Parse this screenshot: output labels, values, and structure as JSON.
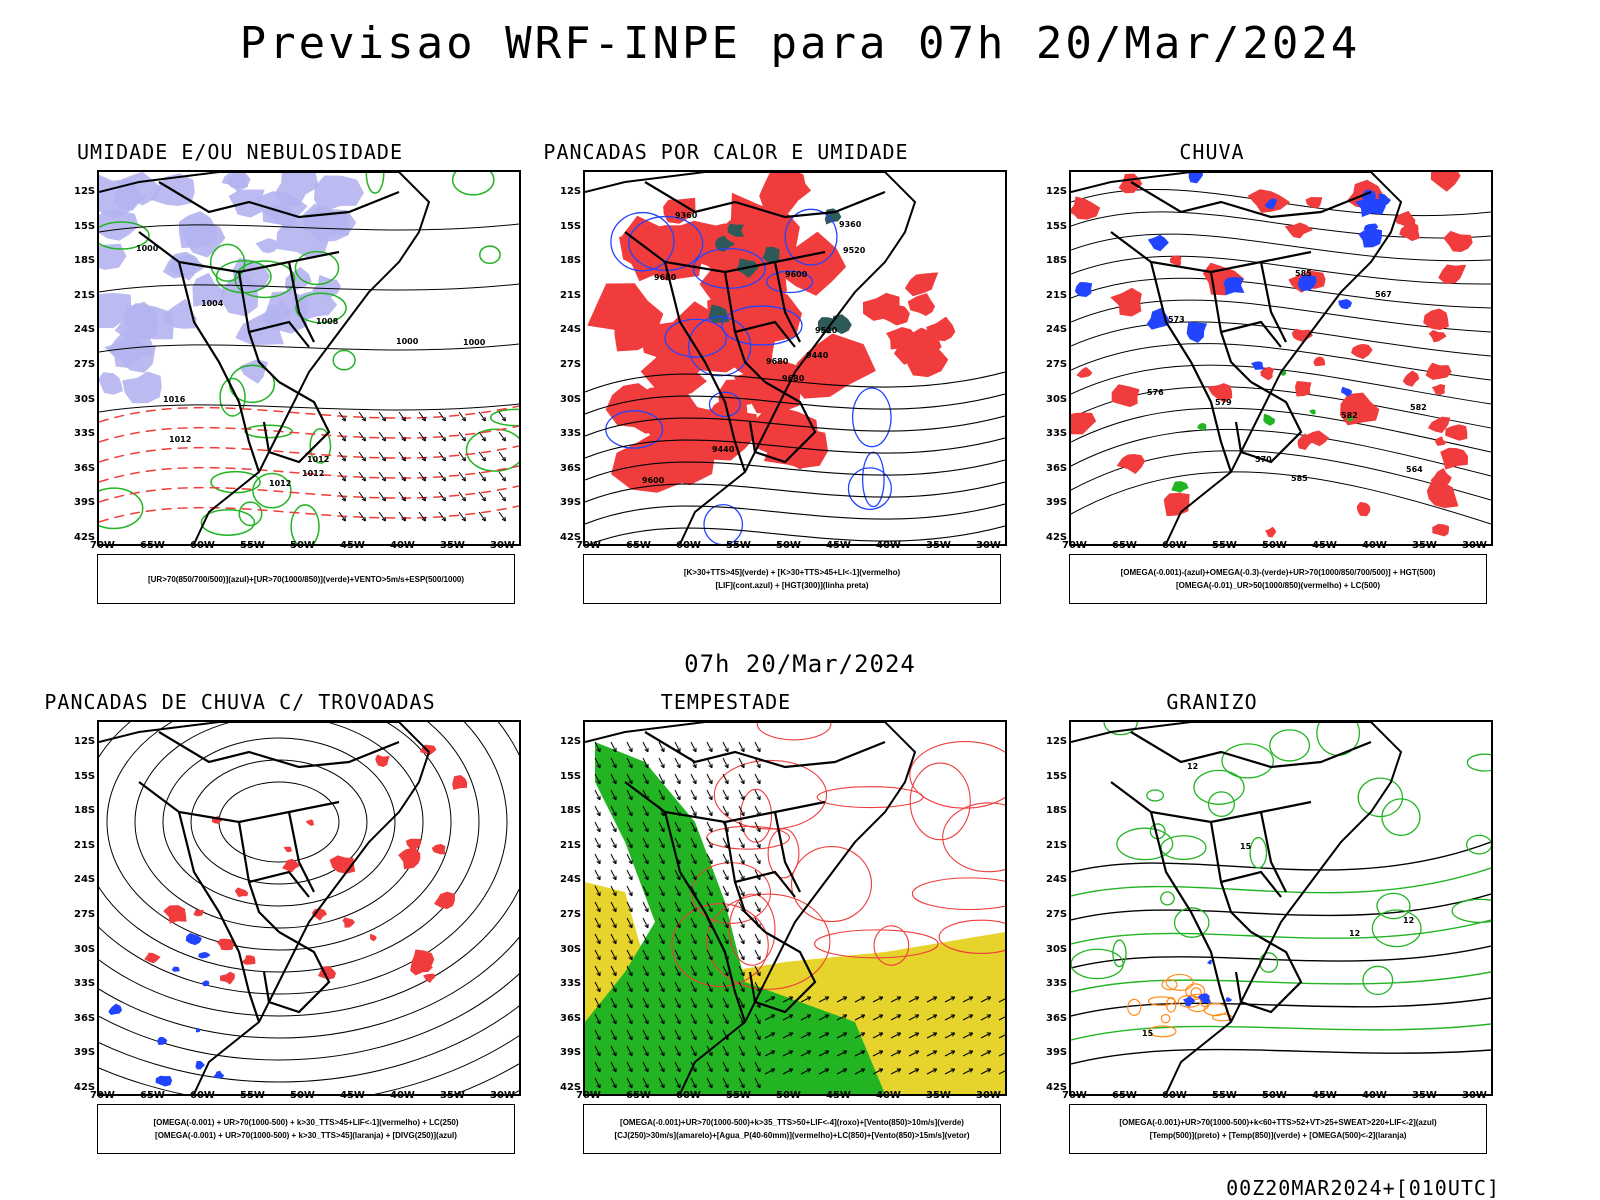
{
  "header": {
    "title": "Previsao WRF-INPE  para 07h 20/Mar/2024"
  },
  "middle_title": "07h 20/Mar/2024",
  "footer": {
    "stamp": "00Z20MAR2024+[010UTC]"
  },
  "axes": {
    "lat_labels": [
      "12S",
      "15S",
      "18S",
      "21S",
      "24S",
      "27S",
      "30S",
      "33S",
      "36S",
      "39S",
      "42S"
    ],
    "lon_labels": [
      "70W",
      "65W",
      "60W",
      "55W",
      "50W",
      "45W",
      "40W",
      "35W",
      "30W"
    ]
  },
  "colors": {
    "red": "#f03c3c",
    "green": "#22b422",
    "blue": "#2244ff",
    "lavender": "#b4b4f0",
    "yellow": "#e6d42c",
    "orange": "#ff8c1a",
    "darkteal": "#2f5a5a"
  },
  "panels": [
    {
      "title": "UMIDADE E/OU NEBULOSIDADE",
      "legend": [
        "[UR>70(850/700/500)](azul)+[UR>70(1000/850)](verde)+VENTO>5m/s+ESP(500/1000)"
      ],
      "contour_labels": [
        "1012",
        "1012",
        "1008",
        "1000",
        "1000",
        "1012",
        "1012",
        "1016",
        "1000",
        "1004"
      ]
    },
    {
      "title": "PANCADAS POR CALOR E UMIDADE",
      "legend": [
        "[K>30+TTS>45](verde) + [K>30+TTS>45+LI<-1](vermelho)",
        "[LIF](cont.azul) + [HGT(300)](linha preta)"
      ],
      "contour_labels": [
        "9680",
        "9680",
        "9680",
        "9600",
        "9520",
        "9440",
        "9360",
        "9600",
        "9520",
        "9440",
        "9360"
      ]
    },
    {
      "title": "CHUVA",
      "legend": [
        "[OMEGA(-0.001)-(azul)+OMEGA(-0.3)-(verde)+UR>70(1000/850/700/500)] + HGT(500)",
        "[OMEGA(-0.01)_UR>50(1000/850)(vermelho) + LC(500)"
      ],
      "contour_labels": [
        "585",
        "582",
        "579",
        "576",
        "573",
        "570",
        "567",
        "564",
        "585",
        "582"
      ]
    },
    {
      "title": "PANCADAS DE CHUVA C/ TROVOADAS",
      "legend": [
        "[OMEGA(-0.001) + UR>70(1000-500) + k>30_TTS>45+LIF<-1](vermelho) + LC(250)",
        "[OMEGA(-0.001) + UR>70(1000-500) + k>30_TTS>45](laranja) + [DIVG(250)](azul)"
      ],
      "contour_labels": []
    },
    {
      "title": "TEMPESTADE",
      "legend": [
        "[OMEGA(-0.001)+UR>70(1000-500)+k>35_TTS>50+LIF<-4](roxo)+[Vento(850)>10m/s](verde)",
        "[CJ(250)>30m/s](amarelo)+[Agua_P(40-60mm)](vermelho)+LC(850)+[Vento(850)>15m/s](vetor)"
      ],
      "contour_labels": []
    },
    {
      "title": "GRANIZO",
      "legend": [
        "[OMEGA(-0.001)+UR>70(1000-500)+k<60+TTS>52+VT>25+SWEAT>220+LIF<-2](azul)",
        "[Temp(500)](preto) + [Temp(850)](verde) + [OMEGA(500)<-2](laranja)"
      ],
      "contour_labels": [
        "12",
        "12",
        "15",
        "12",
        "15"
      ]
    }
  ]
}
